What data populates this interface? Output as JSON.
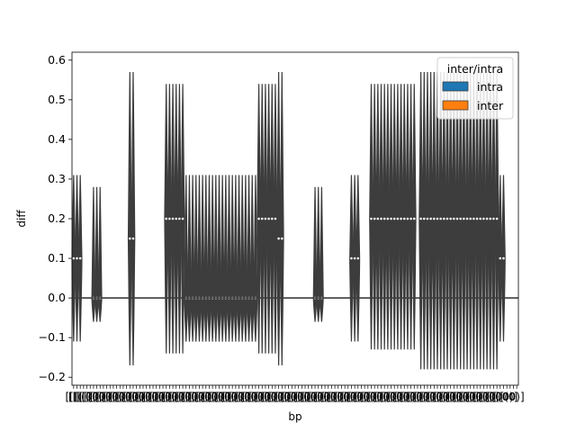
{
  "chart_data": {
    "type": "violin",
    "xlabel": "bp",
    "ylabel": "diff",
    "ylim": [
      -0.22,
      0.62
    ],
    "yticks": [
      -0.2,
      -0.1,
      0.0,
      0.1,
      0.2,
      0.3,
      0.4,
      0.5,
      0.6
    ],
    "ytick_labels": [
      "−0.2",
      "−0.1",
      "0.0",
      "0.1",
      "0.2",
      "0.3",
      "0.4",
      "0.5",
      "0.6"
    ],
    "xtick_label_prefix": "[[[(",
    "xtick_label_suffix": "0)]",
    "grid": false,
    "legend": {
      "title": "inter/intra",
      "placement": "top-right",
      "entries": [
        {
          "label": "intra",
          "color": "#1f77b4"
        },
        {
          "label": "inter",
          "color": "#ff7f0e"
        }
      ]
    },
    "hline_y": 0.0,
    "colors": {
      "violin": "#3d3d3d",
      "median_point": "#ffffff",
      "axis": "#000000"
    },
    "clusters": [
      {
        "count": 3,
        "min": -0.11,
        "max": 0.31,
        "median": 0.1
      },
      {
        "count": 3,
        "min": -0.06,
        "max": 0.28,
        "median": 0.0
      },
      {
        "count": 2,
        "min": -0.17,
        "max": 0.57,
        "median": 0.15
      },
      {
        "count": 6,
        "min": -0.14,
        "max": 0.54,
        "median": 0.2
      },
      {
        "count": 22,
        "min": -0.11,
        "max": 0.31,
        "median": 0.0
      },
      {
        "count": 6,
        "min": -0.14,
        "max": 0.54,
        "median": 0.2
      },
      {
        "count": 2,
        "min": -0.17,
        "max": 0.57,
        "median": 0.15
      },
      {
        "count": 3,
        "min": -0.06,
        "max": 0.28,
        "median": 0.0
      },
      {
        "count": 3,
        "min": -0.11,
        "max": 0.31,
        "median": 0.1
      },
      {
        "count": 14,
        "min": -0.13,
        "max": 0.54,
        "median": 0.2
      },
      {
        "count": 24,
        "min": -0.18,
        "max": 0.57,
        "median": 0.2
      },
      {
        "count": 2,
        "min": -0.11,
        "max": 0.31,
        "median": 0.1
      }
    ]
  }
}
